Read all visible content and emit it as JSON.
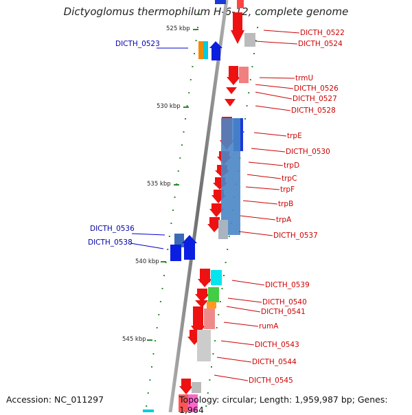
{
  "title": "Dictyoglomus thermophilum H-6-12, complete genome",
  "footer": {
    "accession": "Accession: NC_011297",
    "details": "Topology: circular; Length: 1,959,987 bp; Genes: 1,964"
  },
  "scale_ticks": [
    "525 kbp",
    "530 kbp",
    "535 kbp",
    "540 kbp",
    "545 kbp"
  ],
  "genes_left_labels": [
    "DICTH_0523",
    "DICTH_0536",
    "DICTH_0538"
  ],
  "genes_right_labels": [
    "DICTH_0522",
    "DICTH_0524",
    "trmU",
    "DICTH_0526",
    "DICTH_0527",
    "DICTH_0528",
    "trpE",
    "DICTH_0530",
    "trpD",
    "trpC",
    "trpF",
    "trpB",
    "trpA",
    "DICTH_0537",
    "DICTH_0539",
    "DICTH_0540",
    "DICTH_0541",
    "rumA",
    "DICTH_0543",
    "DICTH_0544",
    "DICTH_0545"
  ],
  "colors": {
    "forward_label": "#cc0000",
    "reverse_label": "#0000aa",
    "backbone": "#8c8c8c",
    "tick": "#2a8a2a",
    "forward_gene": "#ee1111",
    "reverse_gene": "#0a1fe0"
  }
}
